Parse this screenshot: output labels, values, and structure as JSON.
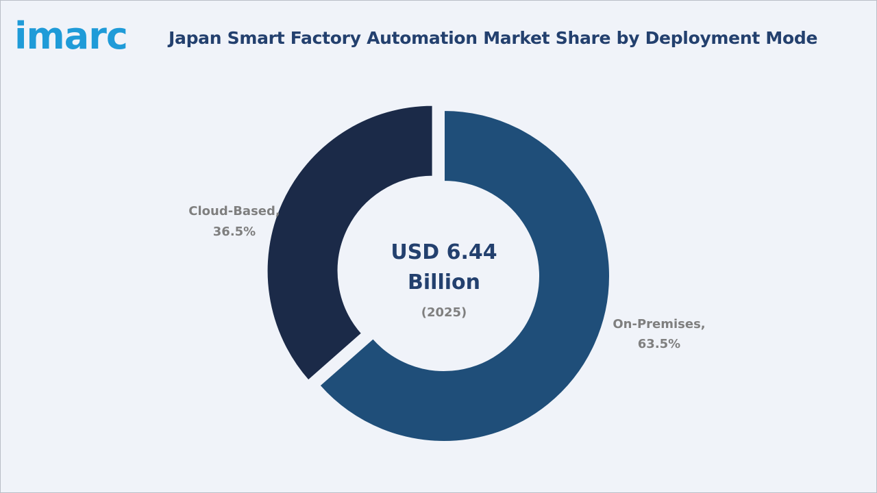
{
  "header": {
    "logo_text": "imarc",
    "title": "Japan Smart Factory Automation Market Share by Deployment Mode"
  },
  "colors": {
    "background": "#f0f3f9",
    "logo": "#1f9bd8",
    "title": "#23406e",
    "label": "#7f7f7f"
  },
  "chart_data": {
    "type": "pie",
    "style": "donut",
    "title": "Japan Smart Factory Automation Market Share by Deployment Mode",
    "center": {
      "value_line1": "USD 6.44",
      "value_line2": "Billion",
      "year": "(2025)"
    },
    "slices": [
      {
        "name": "On-Premises",
        "value": 63.5,
        "label_line1": "On-Premises,",
        "label_line2": "63.5%",
        "color": "#1f4e79",
        "exploded": false
      },
      {
        "name": "Cloud-Based",
        "value": 36.5,
        "label_line1": "Cloud-Based,",
        "label_line2": "36.5%",
        "color": "#1b2a48",
        "exploded": true
      }
    ],
    "legend": "none"
  }
}
